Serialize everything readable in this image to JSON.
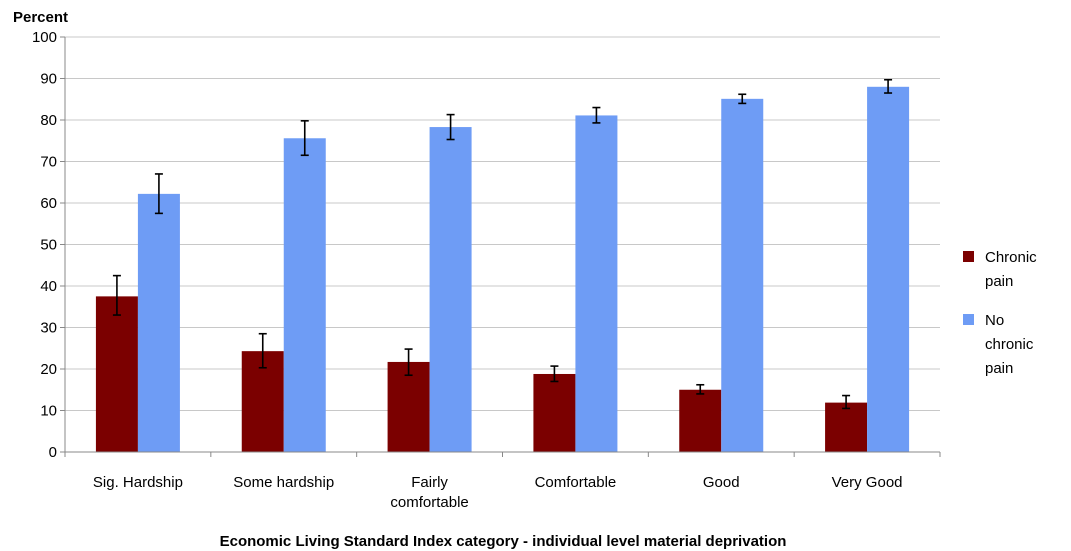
{
  "chart_data": {
    "type": "bar",
    "title": "",
    "ylabel": "Percent",
    "xlabel": "Economic Living Standard Index category - individual level material deprivation",
    "ylim": [
      0,
      100
    ],
    "yticks": [
      0,
      10,
      20,
      30,
      40,
      50,
      60,
      70,
      80,
      90,
      100
    ],
    "grid": true,
    "legend_position": "right",
    "categories": [
      [
        "Sig. Hardship"
      ],
      [
        "Some hardship"
      ],
      [
        "Fairly",
        "comfortable"
      ],
      [
        "Comfortable"
      ],
      [
        "Good"
      ],
      [
        "Very Good"
      ]
    ],
    "series": [
      {
        "name": [
          "Chronic",
          "pain"
        ],
        "color": "#7b0000",
        "values": [
          37.5,
          24.3,
          21.7,
          18.8,
          15.0,
          11.9
        ],
        "error_low": [
          33.0,
          20.3,
          18.5,
          17.0,
          14.0,
          10.5
        ],
        "error_high": [
          42.5,
          28.5,
          24.8,
          20.7,
          16.2,
          13.6
        ]
      },
      {
        "name": [
          "No",
          "chronic",
          "pain"
        ],
        "color": "#6e9cf5",
        "values": [
          62.2,
          75.6,
          78.3,
          81.1,
          85.1,
          88.0
        ],
        "error_low": [
          57.5,
          71.5,
          75.3,
          79.3,
          84.0,
          86.5
        ],
        "error_high": [
          67.0,
          79.8,
          81.3,
          83.0,
          86.2,
          89.7
        ]
      }
    ]
  }
}
